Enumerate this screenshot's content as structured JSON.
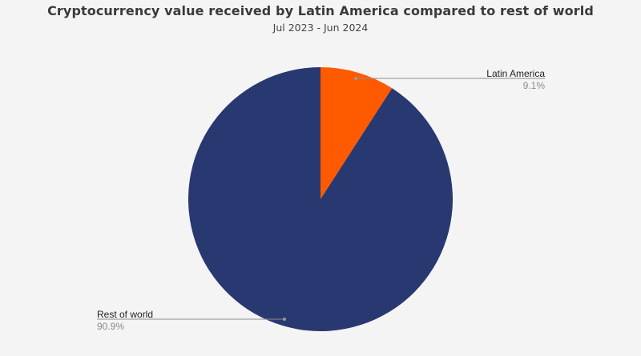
{
  "chart_data": {
    "type": "pie",
    "title": "Cryptocurrency value received by Latin America compared to rest of world",
    "subtitle": "Jul 2023 - Jun 2024",
    "slices": [
      {
        "label": "Latin America",
        "value": 9.1,
        "value_label": "9.1%",
        "color": "#ff5a00"
      },
      {
        "label": "Rest of world",
        "value": 90.9,
        "value_label": "90.9%",
        "color": "#283870"
      }
    ],
    "start_angle": "12 o'clock",
    "direction": "clockwise",
    "legend": "none",
    "labels": "outside with leader lines"
  }
}
